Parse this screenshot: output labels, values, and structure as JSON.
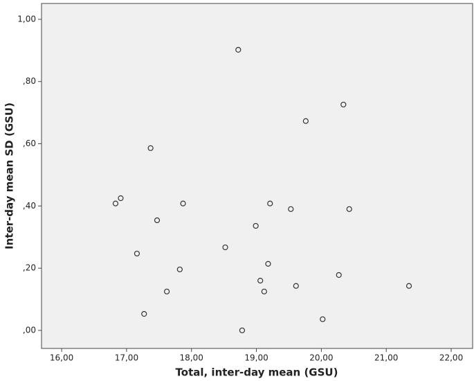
{
  "chart_data": {
    "type": "scatter",
    "x_label": "Total, inter-day mean (GSU)",
    "y_label": "Inter-day mean SD (GSU)",
    "x": [
      18.72,
      20.34,
      19.76,
      17.37,
      16.91,
      16.83,
      17.87,
      19.21,
      19.53,
      20.43,
      17.47,
      18.99,
      18.52,
      17.16,
      19.18,
      17.82,
      20.27,
      19.06,
      19.61,
      21.35,
      17.62,
      19.12,
      17.27,
      20.02,
      18.78
    ],
    "values": [
      0.902,
      0.726,
      0.673,
      0.586,
      0.425,
      0.408,
      0.408,
      0.408,
      0.39,
      0.39,
      0.354,
      0.336,
      0.267,
      0.247,
      0.214,
      0.196,
      0.178,
      0.16,
      0.143,
      0.143,
      0.125,
      0.125,
      0.053,
      0.036,
      0.0
    ],
    "color": "#333333",
    "xlim": [
      15.69,
      22.33
    ],
    "ylim": [
      -0.058,
      1.051
    ],
    "xticks": [
      {
        "value": 16,
        "label": "16,00"
      },
      {
        "value": 17,
        "label": "17,00"
      },
      {
        "value": 18,
        "label": "18,00"
      },
      {
        "value": 19,
        "label": "19,00"
      },
      {
        "value": 20,
        "label": "20,00"
      },
      {
        "value": 21,
        "label": "21,00"
      },
      {
        "value": 22,
        "label": "22,00"
      }
    ],
    "yticks": [
      {
        "value": 0,
        "label": ",00"
      },
      {
        "value": 0.2,
        "label": ",20"
      },
      {
        "value": 0.4,
        "label": ",40"
      },
      {
        "value": 0.6,
        "label": ",60"
      },
      {
        "value": 0.8,
        "label": ",80"
      },
      {
        "value": 1,
        "label": "1,00"
      }
    ],
    "grid": false
  }
}
